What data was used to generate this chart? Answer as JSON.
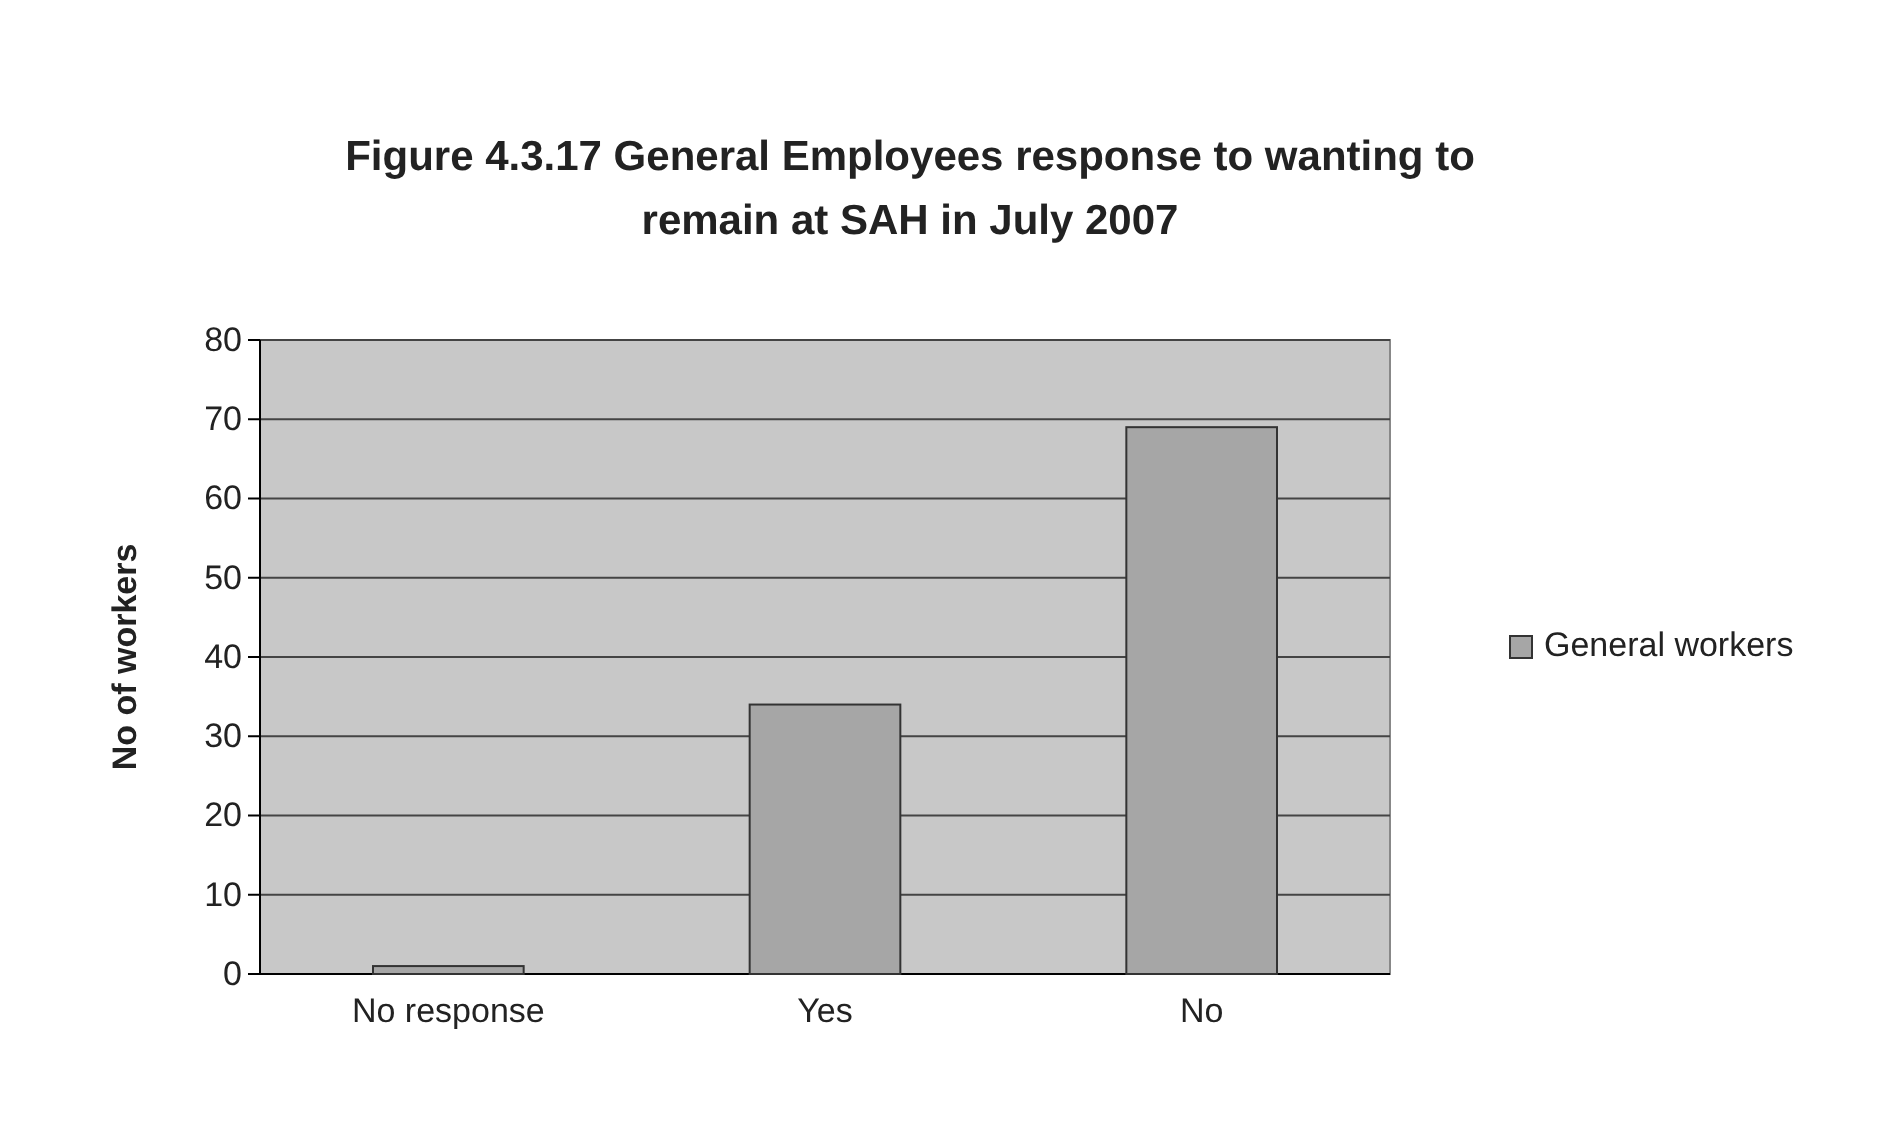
{
  "chart_data": {
    "type": "bar",
    "title": "Figure 4.3.17 General Employees response to wanting to remain at SAH in July 2007",
    "ylabel": "No of workers",
    "categories": [
      "No response",
      "Yes",
      "No"
    ],
    "series": [
      {
        "name": "General workers",
        "color": "#a6a6a6",
        "values": [
          1,
          34,
          69
        ]
      }
    ],
    "ylim": [
      0,
      80
    ],
    "yticks": [
      0,
      10,
      20,
      30,
      40,
      50,
      60,
      70,
      80
    ],
    "grid": "y",
    "legend": "right"
  }
}
